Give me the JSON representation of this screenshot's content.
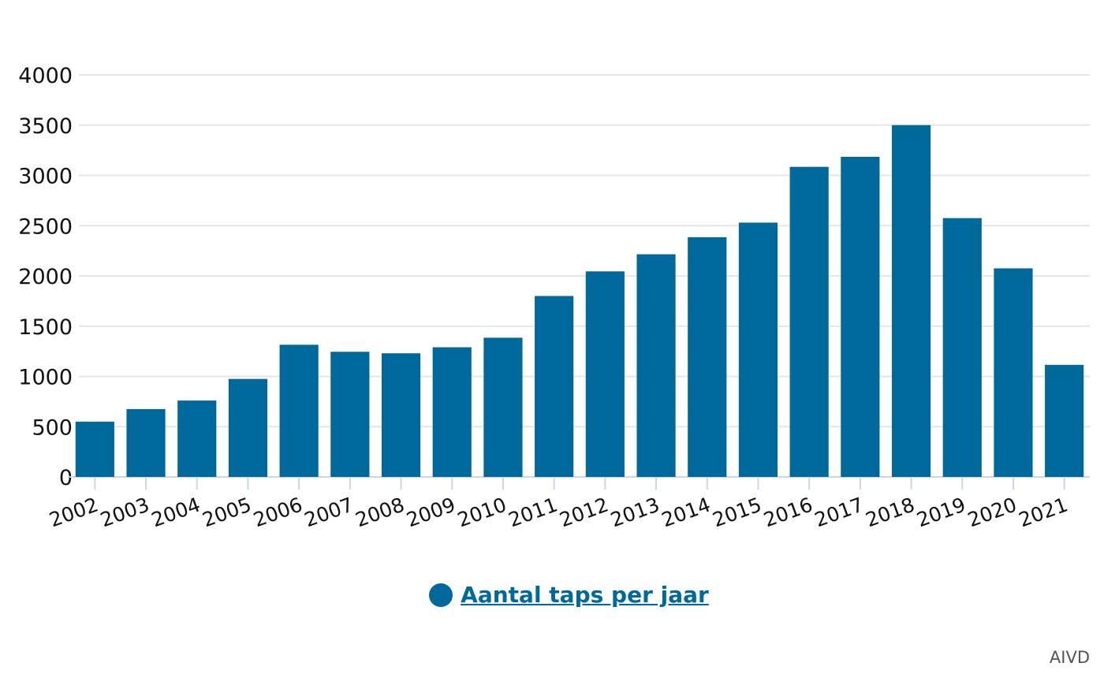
{
  "chart_data": {
    "type": "bar",
    "categories": [
      "2002",
      "2003",
      "2004",
      "2005",
      "2006",
      "2007",
      "2008",
      "2009",
      "2010",
      "2011",
      "2012",
      "2013",
      "2014",
      "2015",
      "2016",
      "2017",
      "2018",
      "2019",
      "2020",
      "2021"
    ],
    "series": [
      {
        "name": "Aantal taps per jaar",
        "color": "#00699b",
        "values": [
          550,
          675,
          760,
          975,
          1315,
          1245,
          1230,
          1290,
          1385,
          1800,
          2045,
          2215,
          2385,
          2530,
          3085,
          3185,
          3500,
          2575,
          2075,
          1115
        ]
      }
    ],
    "yticks": [
      "0",
      "500",
      "1000",
      "1500",
      "2000",
      "2500",
      "3000",
      "3500",
      "4000"
    ],
    "ylim": [
      0,
      4000
    ],
    "grid": true,
    "legend_position": "bottom-center",
    "credit": "AIVD"
  }
}
